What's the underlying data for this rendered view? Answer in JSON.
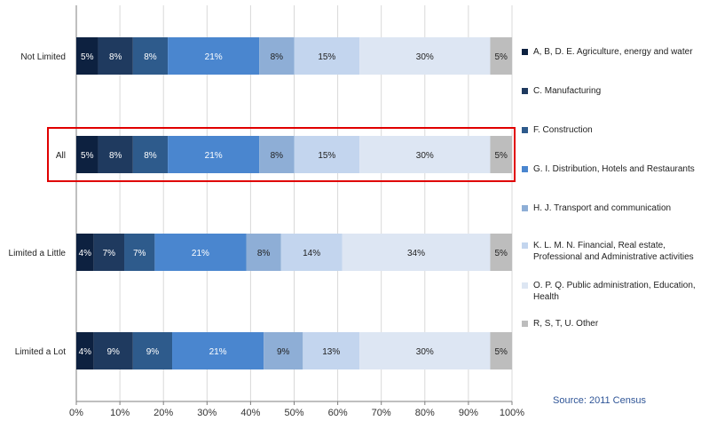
{
  "chart_data": {
    "type": "bar",
    "orientation": "horizontal",
    "stacked": "percent",
    "categories": [
      "Not Limited",
      "All",
      "Limited a Little",
      "Limited a Lot"
    ],
    "series": [
      {
        "name": "A, B, D. E. Agriculture, energy and water",
        "color": "#0d2140",
        "values": [
          5,
          5,
          4,
          4
        ],
        "labels": [
          "5%",
          "5%",
          "4%",
          "4%"
        ]
      },
      {
        "name": "C. Manufacturing",
        "color": "#1f3a5f",
        "values": [
          8,
          8,
          7,
          9
        ],
        "labels": [
          "8%",
          "8%",
          "7%",
          "9%"
        ]
      },
      {
        "name": "F. Construction",
        "color": "#2e5b8c",
        "values": [
          8,
          8,
          7,
          9
        ],
        "labels": [
          "8%",
          "8%",
          "7%",
          "9%"
        ]
      },
      {
        "name": "G. I. Distribution, Hotels and Restaurants",
        "color": "#4a86cf",
        "values": [
          21,
          21,
          21,
          21
        ],
        "labels": [
          "21%",
          "21%",
          "21%",
          "21%"
        ]
      },
      {
        "name": "H. J. Transport and communication",
        "color": "#8eaed6",
        "values": [
          8,
          8,
          8,
          9
        ],
        "labels": [
          "8%",
          "8%",
          "8%",
          "9%"
        ]
      },
      {
        "name": "K. L. M. N. Financial, Real estate, Professional and Administrative activities",
        "color": "#c3d5ee",
        "values": [
          15,
          15,
          14,
          13
        ],
        "labels": [
          "15%",
          "15%",
          "14%",
          "13%"
        ]
      },
      {
        "name": "O. P. Q. Public administration, Education, Health",
        "color": "#dde6f3",
        "values": [
          30,
          30,
          34,
          30
        ],
        "labels": [
          "30%",
          "30%",
          "34%",
          "30%"
        ]
      },
      {
        "name": "R, S, T, U. Other",
        "color": "#bdbdbd",
        "values": [
          5,
          5,
          5,
          5
        ],
        "labels": [
          "5%",
          "5%",
          "5%",
          "5%"
        ]
      }
    ],
    "xaxis": {
      "ticks": [
        "0%",
        "10%",
        "20%",
        "30%",
        "40%",
        "50%",
        "60%",
        "70%",
        "80%",
        "90%",
        "100%"
      ],
      "range": [
        0,
        100
      ]
    },
    "highlighted_category": "All",
    "highlight_color": "#e00000",
    "legend_position": "right",
    "grid": true
  },
  "source": "Source: 2011 Census"
}
